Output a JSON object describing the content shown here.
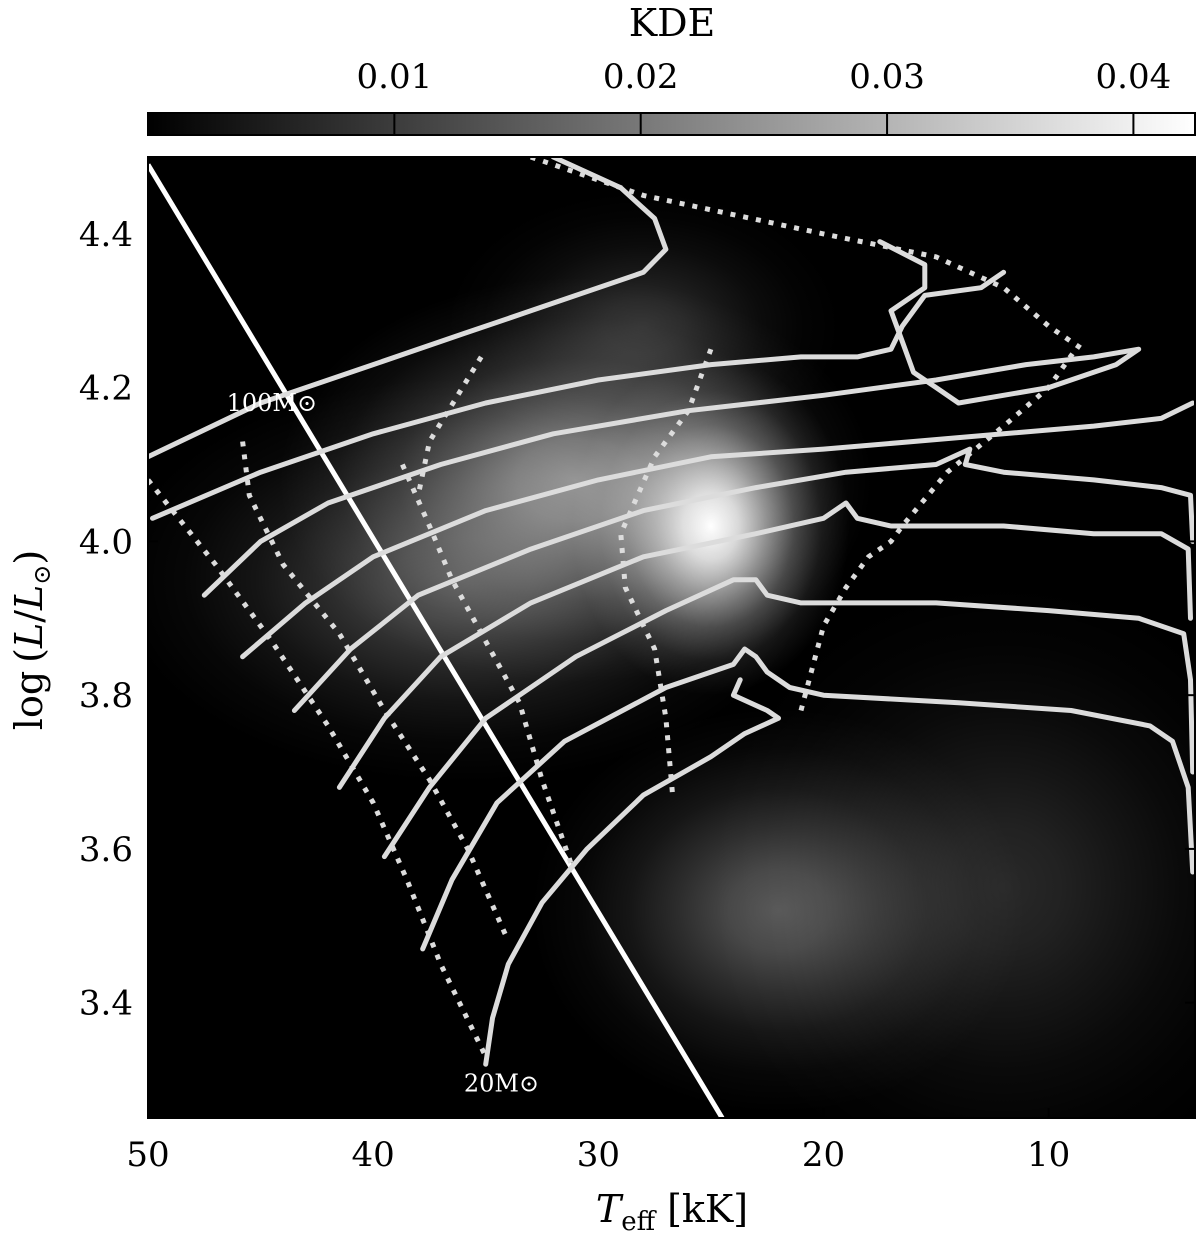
{
  "chart_data": {
    "type": "heatmap",
    "colorbar": {
      "label": "KDE",
      "range": [
        0,
        0.0425
      ],
      "ticks": [
        0.01,
        0.02,
        0.03,
        0.04
      ],
      "tick_labels": [
        "0.01",
        "0.02",
        "0.03",
        "0.04"
      ],
      "placement": "top",
      "colormap": "grayscale"
    },
    "xlabel": "T_eff [kK]",
    "xlabel_main": "T",
    "xlabel_sub": "eff",
    "xlabel_unit": "[kK]",
    "ylabel": "log(L/L☉)",
    "ylabel_pre": "log",
    "ylabel_L": "L",
    "ylabel_sun": "⊙",
    "xlim": [
      50,
      3.5
    ],
    "ylim": [
      3.25,
      4.5
    ],
    "x_inverted": true,
    "xticks": [
      50,
      40,
      30,
      20,
      10
    ],
    "xtick_labels": [
      "50",
      "40",
      "30",
      "20",
      "10"
    ],
    "yticks": [
      3.4,
      3.6,
      3.8,
      4.0,
      4.2,
      4.4
    ],
    "ytick_labels": [
      "3.4",
      "3.6",
      "3.8",
      "4.0",
      "4.2",
      "4.4"
    ],
    "grid": false,
    "kde_blobs": [
      {
        "x": 25,
        "y": 4.02,
        "sx": 2.8,
        "sy": 0.1,
        "w": 1.0
      },
      {
        "x": 31,
        "y": 4.08,
        "sx": 6.0,
        "sy": 0.12,
        "w": 0.55
      },
      {
        "x": 36,
        "y": 3.95,
        "sx": 7.0,
        "sy": 0.12,
        "w": 0.32
      },
      {
        "x": 22,
        "y": 3.52,
        "sx": 5.0,
        "sy": 0.12,
        "w": 0.34
      },
      {
        "x": 12,
        "y": 3.55,
        "sx": 6.0,
        "sy": 0.18,
        "w": 0.16
      },
      {
        "x": 28,
        "y": 4.28,
        "sx": 4.0,
        "sy": 0.08,
        "w": 0.18
      }
    ],
    "diagonal_line": {
      "points": [
        [
          50,
          4.49
        ],
        [
          24.5,
          3.25
        ]
      ]
    },
    "tracks": [
      {
        "points": [
          [
            50,
            4.11
          ],
          [
            45,
            4.18
          ],
          [
            40,
            4.23
          ],
          [
            36,
            4.27
          ],
          [
            33,
            4.3
          ],
          [
            28,
            4.35
          ],
          [
            27,
            4.38
          ],
          [
            27.5,
            4.42
          ],
          [
            29,
            4.46
          ],
          [
            32,
            4.5
          ]
        ]
      },
      {
        "points": [
          [
            49.8,
            4.03
          ],
          [
            45,
            4.09
          ],
          [
            40,
            4.14
          ],
          [
            35,
            4.18
          ],
          [
            30,
            4.21
          ],
          [
            25,
            4.23
          ],
          [
            21,
            4.24
          ],
          [
            18.5,
            4.24
          ],
          [
            17,
            4.25
          ],
          [
            16.5,
            4.28
          ],
          [
            15.5,
            4.32
          ],
          [
            13,
            4.33
          ],
          [
            12,
            4.35
          ]
        ]
      },
      {
        "points": [
          [
            47.5,
            3.93
          ],
          [
            45,
            4.0
          ],
          [
            42,
            4.05
          ],
          [
            37,
            4.1
          ],
          [
            32,
            4.14
          ],
          [
            26,
            4.17
          ],
          [
            20,
            4.19
          ],
          [
            15,
            4.21
          ],
          [
            11,
            4.23
          ],
          [
            8,
            4.24
          ],
          [
            6,
            4.25
          ],
          [
            7,
            4.23
          ],
          [
            8,
            4.22
          ],
          [
            10,
            4.2
          ],
          [
            14,
            4.18
          ],
          [
            15,
            4.2
          ],
          [
            16,
            4.22
          ],
          [
            16.5,
            4.26
          ],
          [
            17,
            4.3
          ],
          [
            15.5,
            4.33
          ],
          [
            15.5,
            4.36
          ],
          [
            17.5,
            4.39
          ]
        ]
      },
      {
        "points": [
          [
            45.8,
            3.85
          ],
          [
            43,
            3.92
          ],
          [
            40,
            3.98
          ],
          [
            35,
            4.04
          ],
          [
            30,
            4.08
          ],
          [
            25,
            4.11
          ],
          [
            20,
            4.12
          ],
          [
            16,
            4.13
          ],
          [
            12,
            4.14
          ],
          [
            8,
            4.15
          ],
          [
            5,
            4.16
          ],
          [
            3.6,
            4.18
          ]
        ]
      },
      {
        "points": [
          [
            43.5,
            3.78
          ],
          [
            41,
            3.86
          ],
          [
            38,
            3.93
          ],
          [
            33,
            3.99
          ],
          [
            28,
            4.04
          ],
          [
            23,
            4.07
          ],
          [
            19,
            4.09
          ],
          [
            15,
            4.1
          ],
          [
            13.5,
            4.12
          ],
          [
            13.7,
            4.1
          ],
          [
            12,
            4.09
          ],
          [
            8,
            4.08
          ],
          [
            5,
            4.07
          ],
          [
            3.7,
            4.06
          ],
          [
            3.6,
            4.0
          ]
        ]
      },
      {
        "points": [
          [
            41.5,
            3.68
          ],
          [
            39.5,
            3.77
          ],
          [
            37,
            3.85
          ],
          [
            33,
            3.92
          ],
          [
            28,
            3.98
          ],
          [
            23,
            4.01
          ],
          [
            20,
            4.03
          ],
          [
            19,
            4.05
          ],
          [
            18.5,
            4.03
          ],
          [
            17,
            4.02
          ],
          [
            12,
            4.02
          ],
          [
            8,
            4.01
          ],
          [
            5,
            4.01
          ],
          [
            3.8,
            3.99
          ],
          [
            3.7,
            3.9
          ]
        ]
      },
      {
        "points": [
          [
            39.5,
            3.59
          ],
          [
            37.5,
            3.68
          ],
          [
            35,
            3.77
          ],
          [
            31,
            3.85
          ],
          [
            27,
            3.91
          ],
          [
            24,
            3.95
          ],
          [
            23,
            3.95
          ],
          [
            22.5,
            3.93
          ],
          [
            21,
            3.92
          ],
          [
            15,
            3.92
          ],
          [
            10,
            3.91
          ],
          [
            6,
            3.9
          ],
          [
            4,
            3.88
          ],
          [
            3.7,
            3.82
          ],
          [
            3.6,
            3.7
          ]
        ]
      },
      {
        "points": [
          [
            37.8,
            3.47
          ],
          [
            36.5,
            3.56
          ],
          [
            34.5,
            3.66
          ],
          [
            31.5,
            3.74
          ],
          [
            27,
            3.81
          ],
          [
            24,
            3.84
          ],
          [
            23.5,
            3.86
          ],
          [
            23,
            3.85
          ],
          [
            22.5,
            3.83
          ],
          [
            21.5,
            3.81
          ],
          [
            20,
            3.8
          ],
          [
            14,
            3.79
          ],
          [
            9,
            3.78
          ],
          [
            5.5,
            3.76
          ],
          [
            4.5,
            3.74
          ],
          [
            3.8,
            3.68
          ],
          [
            3.6,
            3.57
          ]
        ]
      },
      {
        "points": [
          [
            35,
            3.32
          ],
          [
            34.7,
            3.38
          ],
          [
            34,
            3.45
          ],
          [
            32.5,
            3.53
          ],
          [
            30.5,
            3.6
          ],
          [
            28,
            3.67
          ],
          [
            25,
            3.72
          ],
          [
            23.5,
            3.75
          ],
          [
            22,
            3.77
          ],
          [
            22.5,
            3.78
          ],
          [
            24,
            3.8
          ],
          [
            23.7,
            3.82
          ]
        ]
      }
    ],
    "isochrones": [
      {
        "points": [
          [
            50,
            4.08
          ],
          [
            47,
            3.97
          ],
          [
            44.5,
            3.87
          ],
          [
            42,
            3.76
          ],
          [
            40,
            3.66
          ],
          [
            38.5,
            3.56
          ],
          [
            37,
            3.45
          ],
          [
            35,
            3.33
          ]
        ]
      },
      {
        "points": [
          [
            45.8,
            4.13
          ],
          [
            45.5,
            4.06
          ],
          [
            44,
            3.97
          ],
          [
            41.5,
            3.88
          ],
          [
            39.5,
            3.78
          ],
          [
            37.5,
            3.69
          ],
          [
            35.8,
            3.6
          ],
          [
            34,
            3.48
          ]
        ]
      },
      {
        "points": [
          [
            38.7,
            4.1
          ],
          [
            37.5,
            4.02
          ],
          [
            36.5,
            3.95
          ],
          [
            35,
            3.87
          ],
          [
            33.5,
            3.79
          ],
          [
            32.5,
            3.69
          ],
          [
            31.2,
            3.58
          ]
        ]
      },
      {
        "points": [
          [
            35.2,
            4.24
          ],
          [
            37.5,
            4.13
          ],
          [
            38,
            4.06
          ]
        ]
      },
      {
        "points": [
          [
            25,
            4.25
          ],
          [
            26,
            4.17
          ],
          [
            27.5,
            4.11
          ],
          [
            29,
            4.01
          ],
          [
            28.8,
            3.94
          ],
          [
            27.5,
            3.86
          ],
          [
            27,
            3.77
          ],
          [
            26.7,
            3.67
          ]
        ]
      },
      {
        "points": [
          [
            21,
            3.78
          ],
          [
            20,
            3.89
          ],
          [
            19,
            3.94
          ],
          [
            18,
            3.98
          ],
          [
            17,
            4.0
          ],
          [
            16.5,
            4.02
          ],
          [
            14.5,
            4.09
          ],
          [
            12,
            4.15
          ],
          [
            10,
            4.2
          ],
          [
            8.8,
            4.25
          ]
        ]
      },
      {
        "points": [
          [
            33,
            4.5
          ],
          [
            28,
            4.45
          ],
          [
            20,
            4.4
          ],
          [
            15,
            4.37
          ],
          [
            12,
            4.33
          ],
          [
            10,
            4.28
          ],
          [
            8.5,
            4.25
          ]
        ]
      }
    ],
    "annotations": [
      {
        "text": "100M⊙",
        "x": 44.5,
        "y": 4.18
      },
      {
        "text": "20M⊙",
        "x": 34.3,
        "y": 3.295
      }
    ]
  }
}
